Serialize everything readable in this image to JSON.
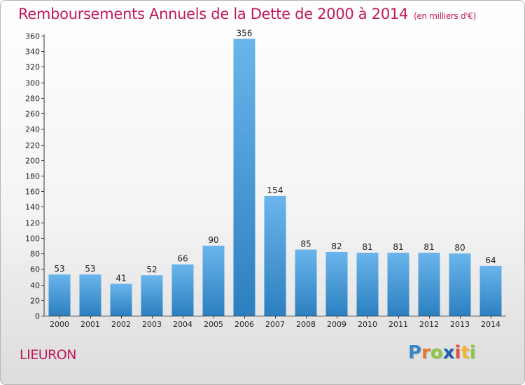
{
  "chart_title": "Remboursements Annuels de la Dette de 2000 à 2014",
  "chart_subtitle": "(en milliers d'€)",
  "city_label": "LIEURON",
  "logo": {
    "letters": [
      "P",
      "r",
      "o",
      "x",
      "i",
      "t",
      "i"
    ],
    "colors": [
      "#3a86c8",
      "#e8732a",
      "#8dc63f",
      "#1f5fa8",
      "#e84c3d",
      "#f2b632",
      "#8dc63f"
    ]
  },
  "colors": {
    "accent": "#c2185b",
    "bar_light": "#6ab5ec",
    "bar_dark": "#2c7fc0"
  },
  "chart_data": {
    "type": "bar",
    "categories": [
      "2000",
      "2001",
      "2002",
      "2003",
      "2004",
      "2005",
      "2006",
      "2007",
      "2008",
      "2009",
      "2010",
      "2011",
      "2012",
      "2013",
      "2014"
    ],
    "values": [
      53,
      53,
      41,
      52,
      66,
      90,
      356,
      154,
      85,
      82,
      81,
      81,
      81,
      80,
      64
    ],
    "title": "Remboursements Annuels de la Dette de 2000 à 2014",
    "subtitle": "(en milliers d'€)",
    "ylim": [
      0,
      360
    ],
    "yticks": [
      0,
      20,
      40,
      60,
      80,
      100,
      120,
      140,
      160,
      180,
      200,
      220,
      240,
      260,
      280,
      300,
      320,
      340,
      360
    ],
    "grid": false,
    "data_labels": true
  }
}
